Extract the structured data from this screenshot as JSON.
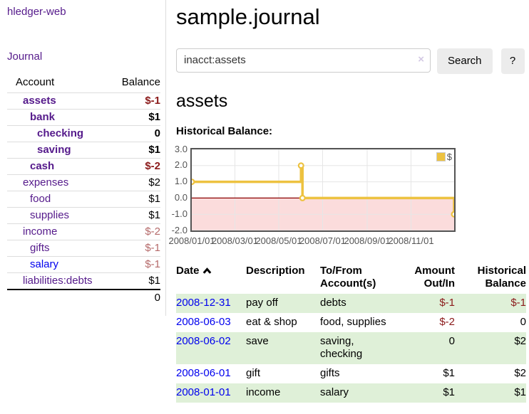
{
  "brand": "hledger-web",
  "sidebar": {
    "journal_link": "Journal",
    "accounts": {
      "header_account": "Account",
      "header_balance": "Balance",
      "rows": [
        {
          "name": "assets",
          "balance": "$-1"
        },
        {
          "name": "bank",
          "balance": "$1"
        },
        {
          "name": "checking",
          "balance": "0"
        },
        {
          "name": "saving",
          "balance": "$1"
        },
        {
          "name": "cash",
          "balance": "$-2"
        },
        {
          "name": "expenses",
          "balance": "$2"
        },
        {
          "name": "food",
          "balance": "$1"
        },
        {
          "name": "supplies",
          "balance": "$1"
        },
        {
          "name": "income",
          "balance": "$-2"
        },
        {
          "name": "gifts",
          "balance": "$-1"
        },
        {
          "name": "salary",
          "balance": "$-1"
        },
        {
          "name": "liabilities:debts",
          "balance": "$1"
        }
      ],
      "total": "0"
    }
  },
  "header": {
    "title": "sample.journal"
  },
  "search": {
    "value": "inacct:assets",
    "clear_icon": "×",
    "search_button": "Search",
    "help_button": "?"
  },
  "account_page": {
    "heading": "assets",
    "chart_title": "Historical Balance:"
  },
  "chart_data": {
    "type": "line",
    "step": true,
    "title": "Historical Balance",
    "legend_position": "top-right",
    "grid": true,
    "x_range": [
      "2008-01-01",
      "2008-12-31"
    ],
    "ylim": [
      -2,
      3
    ],
    "ytick_labels": [
      "3.0",
      "2.0",
      "1.0",
      "0.0",
      "-1.0",
      "-2.0"
    ],
    "ytick_values": [
      3,
      2,
      1,
      0,
      -1,
      -2
    ],
    "xticks": [
      {
        "label": "2008/01/01",
        "date": "2008-01-01"
      },
      {
        "label": "2008/03/01",
        "date": "2008-03-01"
      },
      {
        "label": "2008/05/01",
        "date": "2008-05-01"
      },
      {
        "label": "2008/07/01",
        "date": "2008-07-01"
      },
      {
        "label": "2008/09/01",
        "date": "2008-09-01"
      },
      {
        "label": "2008/11/01",
        "date": "2008-11-01"
      }
    ],
    "series": [
      {
        "name": "$",
        "color": "#edc240",
        "points": [
          {
            "date": "2008-01-01",
            "value": 1
          },
          {
            "date": "2008-06-01",
            "value": 2
          },
          {
            "date": "2008-06-03",
            "value": 0
          },
          {
            "date": "2008-12-31",
            "value": -1
          }
        ]
      }
    ],
    "negative_region_fill": "#fbdcdc",
    "zero_line_color": "#8b0000",
    "gridline_color": "#e6e6e6"
  },
  "register": {
    "headers": {
      "date": "Date",
      "description": "Description",
      "accounts": "To/From Account(s)",
      "amount": "Amount Out/In",
      "balance": "Historical Balance"
    },
    "rows": [
      {
        "date": "2008-12-31",
        "description": "pay off",
        "accounts": "debts",
        "amount": "$-1",
        "balance": "$-1"
      },
      {
        "date": "2008-06-03",
        "description": "eat & shop",
        "accounts": "food, supplies",
        "amount": "$-2",
        "balance": "0"
      },
      {
        "date": "2008-06-02",
        "description": "save",
        "accounts": "saving, checking",
        "amount": "0",
        "balance": "$2"
      },
      {
        "date": "2008-06-01",
        "description": "gift",
        "accounts": "gifts",
        "amount": "$1",
        "balance": "$2"
      },
      {
        "date": "2008-01-01",
        "description": "income",
        "accounts": "salary",
        "amount": "$1",
        "balance": "$1"
      }
    ]
  }
}
